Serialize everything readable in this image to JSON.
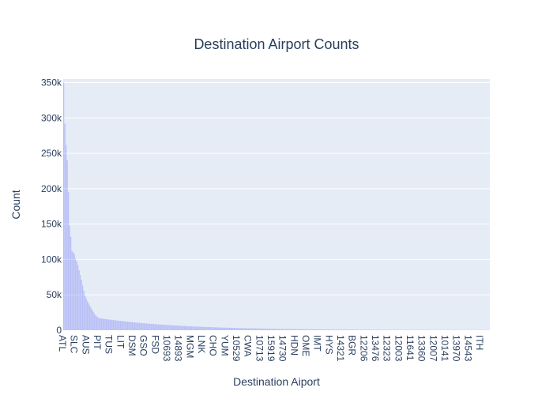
{
  "chart_data": {
    "type": "bar",
    "title": "Destination Airport Counts",
    "xlabel": "Destination Aiport",
    "ylabel": "Count",
    "ylim": [
      0,
      355000
    ],
    "y_ticks": [
      0,
      50000,
      100000,
      150000,
      200000,
      250000,
      300000,
      350000
    ],
    "y_tick_labels": [
      "0",
      "50k",
      "100k",
      "150k",
      "200k",
      "250k",
      "300k",
      "350k"
    ],
    "x_tick_labels": [
      "ATL",
      "SLC",
      "AUS",
      "PIT",
      "TUS",
      "LIT",
      "DSM",
      "GSO",
      "FSD",
      "10693",
      "14893",
      "MGM",
      "LNK",
      "CHO",
      "YUM",
      "10529",
      "CWA",
      "10713",
      "15919",
      "14730",
      "HDN",
      "OME",
      "IMT",
      "HYS",
      "14321",
      "BGR",
      "12206",
      "13476",
      "12323",
      "12003",
      "11641",
      "13360",
      "12007",
      "10141",
      "13970",
      "14543",
      "ITH"
    ],
    "bar_color": "#636efa",
    "bar_opacity": 0.35,
    "plot_bgcolor": "#e5ecf6",
    "grid": true,
    "num_bars": 360,
    "head_values": [
      350000,
      292000,
      262000,
      240000,
      195000,
      148000,
      132000,
      112000,
      110000,
      108000,
      101000,
      97000,
      92000,
      85000,
      78000,
      71000,
      63000,
      56000,
      49000,
      45000,
      41000,
      38000,
      35000,
      32000,
      29000,
      26000,
      23000,
      21000,
      19500,
      18000
    ],
    "tail_start": 17000,
    "tail_end": 80,
    "tail_decay": 0.0145
  }
}
